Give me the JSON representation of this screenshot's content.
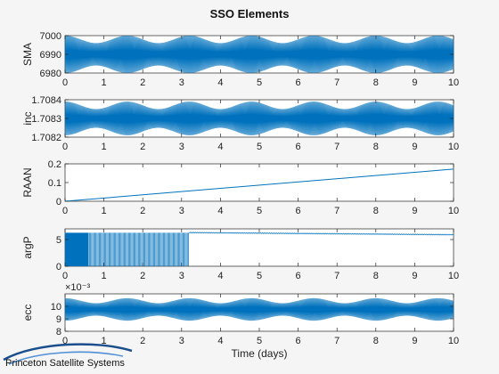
{
  "title": "SSO Elements",
  "xlabel": "Time (days)",
  "logo_text": "Princeton Satellite Systems",
  "colors": {
    "line": "#0072BD",
    "axes_bg": "#ffffff",
    "figure_bg": "#f5f5f5"
  },
  "chart_data": [
    {
      "type": "line",
      "ylabel": "SMA",
      "xlim": [
        0,
        10
      ],
      "ylim": [
        6980,
        7000
      ],
      "yticks": [
        "6980",
        "6990",
        "7000"
      ],
      "xticks": [
        "0",
        "1",
        "2",
        "3",
        "4",
        "5",
        "6",
        "7",
        "8",
        "9",
        "10"
      ],
      "series": [
        {
          "pattern": "oscillation",
          "mean": 6990,
          "amplitude_min": 6,
          "amplitude_max": 10,
          "x_start": 0,
          "x_end": 10
        }
      ]
    },
    {
      "type": "line",
      "ylabel": "inc",
      "xlim": [
        0,
        10
      ],
      "ylim": [
        1.7082,
        1.7084
      ],
      "yticks": [
        "1.7082",
        "1.7083",
        "1.7084"
      ],
      "xticks": [
        "0",
        "1",
        "2",
        "3",
        "4",
        "5",
        "6",
        "7",
        "8",
        "9",
        "10"
      ],
      "series": [
        {
          "pattern": "oscillation",
          "mean": 1.7083,
          "amplitude_min": 5e-05,
          "amplitude_max": 9e-05,
          "x_start": 0,
          "x_end": 10
        }
      ]
    },
    {
      "type": "line",
      "ylabel": "RAAN",
      "xlim": [
        0,
        10
      ],
      "ylim": [
        0,
        0.2
      ],
      "yticks": [
        "0",
        "0.1",
        "0.2"
      ],
      "xticks": [
        "0",
        "1",
        "2",
        "3",
        "4",
        "5",
        "6",
        "7",
        "8",
        "9",
        "10"
      ],
      "series": [
        {
          "pattern": "linear",
          "x": [
            0,
            10
          ],
          "y": [
            0,
            0.172
          ]
        }
      ]
    },
    {
      "type": "line",
      "ylabel": "argP",
      "xlim": [
        0,
        10
      ],
      "ylim": [
        0,
        7
      ],
      "yticks": [
        "0",
        "5"
      ],
      "xticks": [
        "0",
        "1",
        "2",
        "3",
        "4",
        "5",
        "6",
        "7",
        "8",
        "9",
        "10"
      ],
      "series": [
        {
          "pattern": "wrap",
          "wrap_until": 3.2,
          "low": 0,
          "high": 6.28,
          "after_start": 6.3,
          "after_end": 5.9
        }
      ]
    },
    {
      "type": "line",
      "ylabel": "ecc",
      "exponent": "×10⁻³",
      "xlim": [
        0,
        10
      ],
      "ylim": [
        8,
        11
      ],
      "yticks": [
        "8",
        "9",
        "10"
      ],
      "xticks": [
        "0",
        "1",
        "2",
        "3",
        "4",
        "5",
        "6",
        "7",
        "8",
        "9",
        "10"
      ],
      "series": [
        {
          "pattern": "oscillation",
          "mean": 9.75,
          "amplitude_min": 0.5,
          "amplitude_max": 0.9,
          "x_start": 0,
          "x_end": 10
        }
      ]
    }
  ]
}
